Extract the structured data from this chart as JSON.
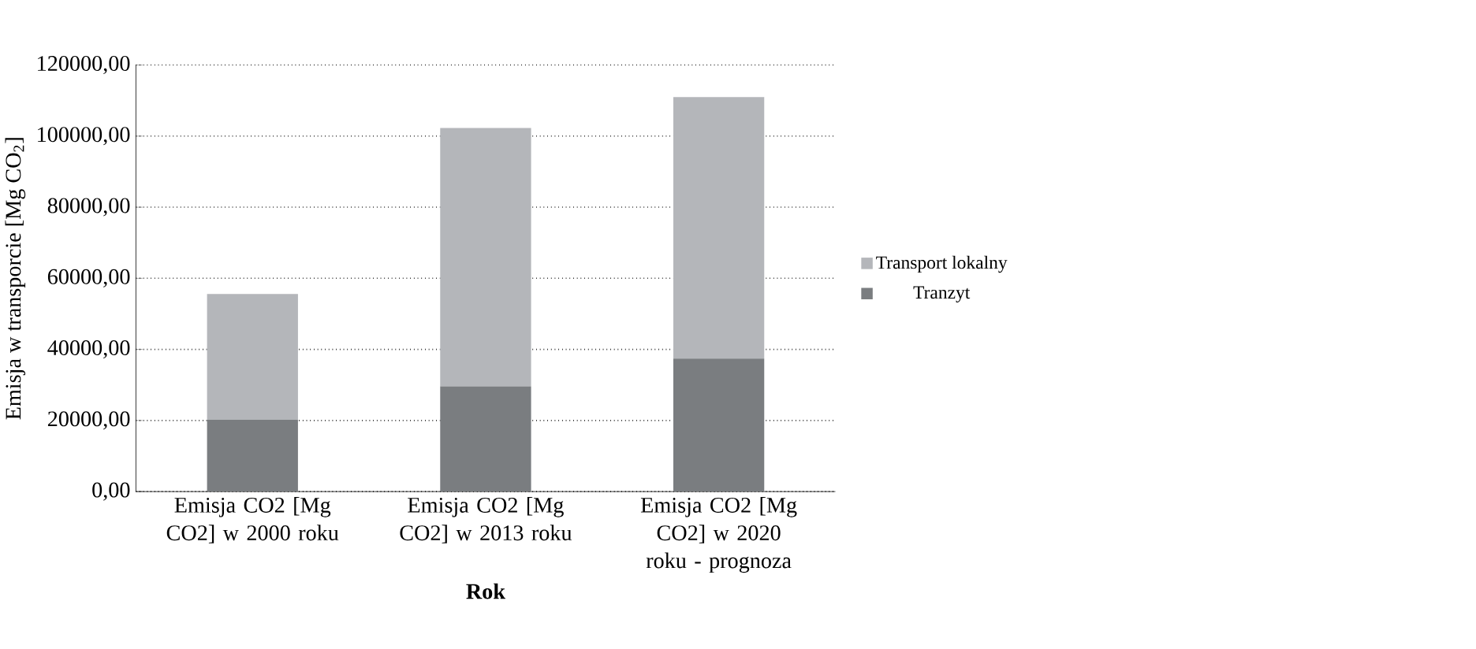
{
  "chart_data": {
    "type": "bar",
    "stacked": true,
    "xlabel": "Rok",
    "ylabel": "Emisja w transporcie [Mg CO$_{2}$]",
    "categories": [
      "Emisja CO2 [Mg CO2] w 2000 roku",
      "Emisja CO2 [Mg CO2] w 2013 roku",
      "Emisja CO2 [Mg CO2] w 2020 roku - prognoza"
    ],
    "series": [
      {
        "name": "Tranzyt",
        "color": "#7a7d80",
        "values": [
          20200,
          29600,
          37400
        ]
      },
      {
        "name": "Transport lokalny",
        "color": "#b4b6ba",
        "values": [
          35400,
          72700,
          73600
        ]
      }
    ],
    "ylim": [
      0,
      120000
    ],
    "yticks": [
      {
        "value": 0,
        "label": "0,00"
      },
      {
        "value": 20000,
        "label": "20000,00"
      },
      {
        "value": 40000,
        "label": "40000,00"
      },
      {
        "value": 60000,
        "label": "60000,00"
      },
      {
        "value": 80000,
        "label": "80000,00"
      },
      {
        "value": 100000,
        "label": "100000,00"
      },
      {
        "value": 120000,
        "label": "120000,00"
      }
    ],
    "grid": "y",
    "legend": "right"
  }
}
